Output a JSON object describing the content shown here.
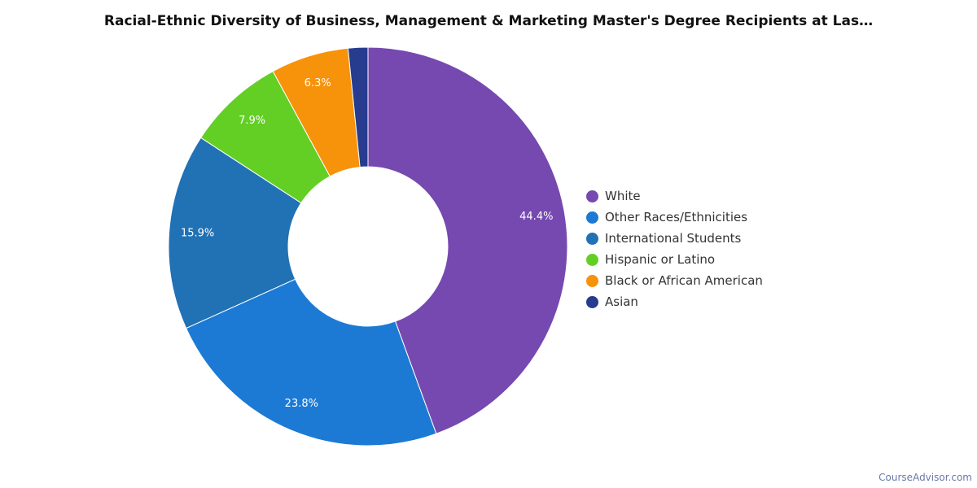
{
  "title": "Racial-Ethnic Diversity of Business, Management & Marketing Master's Degree Recipients at Las…",
  "credit": "CourseAdvisor.com",
  "chart_data": {
    "type": "pie",
    "donut": true,
    "legend_position": "right",
    "series": [
      {
        "name": "White",
        "value": 44.4,
        "label": "44.4%",
        "color": "#7549b0"
      },
      {
        "name": "Other Races/Ethnicities",
        "value": 23.8,
        "label": "23.8%",
        "color": "#1c7ad4"
      },
      {
        "name": "International Students",
        "value": 15.9,
        "label": "15.9%",
        "color": "#2171b5"
      },
      {
        "name": "Hispanic or Latino",
        "value": 7.9,
        "label": "7.9%",
        "color": "#63cf25"
      },
      {
        "name": "Black or African American",
        "value": 6.3,
        "label": "6.3%",
        "color": "#f7920b"
      },
      {
        "name": "Asian",
        "value": 1.6,
        "label": "",
        "color": "#273c8f"
      }
    ]
  }
}
